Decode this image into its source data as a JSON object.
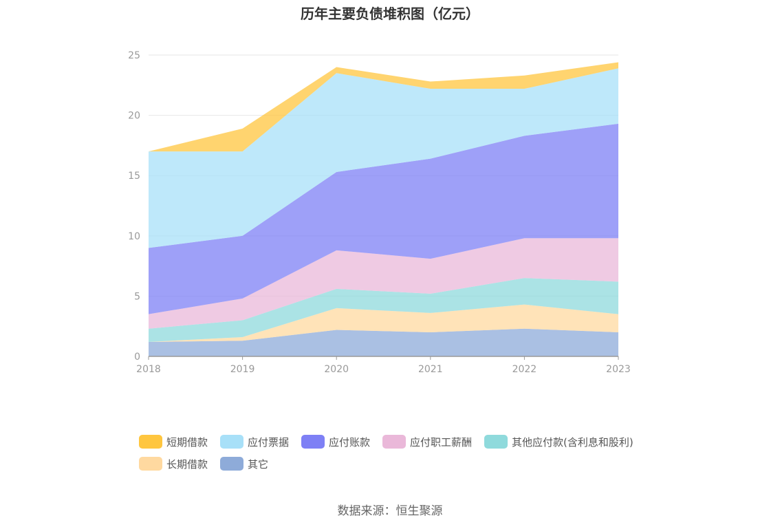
{
  "chart_data": {
    "type": "area",
    "stacked": true,
    "title": "历年主要负债堆积图（亿元）",
    "x": [
      "2018",
      "2019",
      "2020",
      "2021",
      "2022",
      "2023"
    ],
    "ylim": [
      0,
      25
    ],
    "yticks": [
      0,
      5,
      10,
      15,
      20,
      25
    ],
    "grid": true,
    "legend_position": "bottom",
    "series": [
      {
        "name": "其它",
        "color": "#8EABD9",
        "values": [
          1.2,
          1.3,
          2.2,
          2.0,
          2.3,
          2.0
        ]
      },
      {
        "name": "长期借款",
        "color": "#FFD9A0",
        "values": [
          0.0,
          0.3,
          1.8,
          1.6,
          2.0,
          1.5
        ]
      },
      {
        "name": "其他应付款(含利息和股利)",
        "color": "#8FDADC",
        "values": [
          1.1,
          1.4,
          1.6,
          1.6,
          2.2,
          2.7
        ]
      },
      {
        "name": "应付职工薪酬",
        "color": "#EAB8D9",
        "values": [
          1.2,
          1.8,
          3.2,
          2.9,
          3.3,
          3.6
        ]
      },
      {
        "name": "应付账款",
        "color": "#7E80F5",
        "values": [
          5.5,
          5.2,
          6.5,
          8.3,
          8.5,
          9.5
        ]
      },
      {
        "name": "应付票据",
        "color": "#A8E0F8",
        "values": [
          8.0,
          7.0,
          8.2,
          5.8,
          3.9,
          4.6
        ]
      },
      {
        "name": "短期借款",
        "color": "#FFC63F",
        "values": [
          0.0,
          1.9,
          0.5,
          0.6,
          1.1,
          0.5
        ]
      }
    ],
    "legend_order": [
      "短期借款",
      "应付票据",
      "应付账款",
      "应付职工薪酬",
      "其他应付款(含利息和股利)",
      "长期借款",
      "其它"
    ]
  },
  "source": "数据来源：恒生聚源"
}
